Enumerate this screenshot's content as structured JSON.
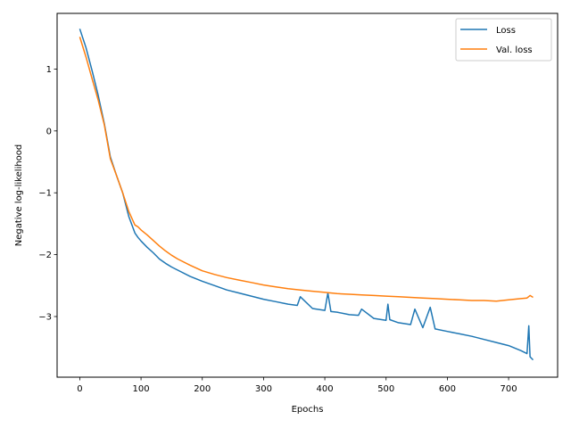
{
  "chart_data": {
    "type": "line",
    "title": "",
    "xlabel": "Epochs",
    "ylabel": "Negative log-likelihood",
    "xlim": [
      -37,
      780
    ],
    "ylim": [
      -3.98,
      1.9
    ],
    "xticks": [
      0,
      100,
      200,
      300,
      400,
      500,
      600,
      700
    ],
    "yticks": [
      -3,
      -2,
      -1,
      0,
      1
    ],
    "grid": false,
    "legend_position": "top-right",
    "series": [
      {
        "name": "Loss",
        "color": "#1f77b4",
        "x": [
          0,
          10,
          20,
          30,
          40,
          50,
          60,
          70,
          80,
          90,
          95,
          100,
          110,
          120,
          130,
          140,
          150,
          160,
          180,
          200,
          220,
          240,
          260,
          280,
          300,
          320,
          340,
          355,
          360,
          380,
          400,
          405,
          410,
          420,
          440,
          455,
          460,
          480,
          500,
          503,
          506,
          520,
          540,
          547,
          560,
          572,
          580,
          600,
          620,
          640,
          660,
          680,
          700,
          720,
          730,
          733,
          735,
          740
        ],
        "values": [
          1.65,
          1.35,
          0.98,
          0.58,
          0.12,
          -0.42,
          -0.72,
          -1.0,
          -1.38,
          -1.65,
          -1.72,
          -1.78,
          -1.88,
          -1.97,
          -2.07,
          -2.14,
          -2.2,
          -2.25,
          -2.35,
          -2.43,
          -2.5,
          -2.57,
          -2.62,
          -2.67,
          -2.72,
          -2.76,
          -2.8,
          -2.82,
          -2.68,
          -2.87,
          -2.9,
          -2.62,
          -2.92,
          -2.93,
          -2.97,
          -2.98,
          -2.88,
          -3.03,
          -3.06,
          -2.8,
          -3.05,
          -3.1,
          -3.13,
          -2.88,
          -3.18,
          -2.85,
          -3.2,
          -3.24,
          -3.28,
          -3.32,
          -3.37,
          -3.42,
          -3.47,
          -3.55,
          -3.6,
          -3.15,
          -3.65,
          -3.7
        ]
      },
      {
        "name": "Val. loss",
        "color": "#ff7f0e",
        "x": [
          0,
          10,
          20,
          30,
          40,
          50,
          60,
          70,
          80,
          90,
          95,
          100,
          110,
          120,
          130,
          140,
          150,
          160,
          180,
          200,
          220,
          240,
          260,
          280,
          300,
          320,
          340,
          360,
          380,
          400,
          420,
          440,
          460,
          480,
          500,
          520,
          540,
          560,
          580,
          600,
          620,
          640,
          660,
          680,
          700,
          720,
          730,
          735,
          740
        ],
        "values": [
          1.52,
          1.2,
          0.85,
          0.5,
          0.1,
          -0.45,
          -0.72,
          -1.0,
          -1.3,
          -1.52,
          -1.55,
          -1.6,
          -1.68,
          -1.77,
          -1.86,
          -1.94,
          -2.01,
          -2.07,
          -2.17,
          -2.26,
          -2.32,
          -2.37,
          -2.41,
          -2.45,
          -2.49,
          -2.52,
          -2.55,
          -2.57,
          -2.59,
          -2.61,
          -2.63,
          -2.64,
          -2.65,
          -2.66,
          -2.67,
          -2.68,
          -2.69,
          -2.7,
          -2.71,
          -2.72,
          -2.73,
          -2.74,
          -2.74,
          -2.75,
          -2.73,
          -2.71,
          -2.7,
          -2.66,
          -2.69
        ]
      }
    ]
  }
}
